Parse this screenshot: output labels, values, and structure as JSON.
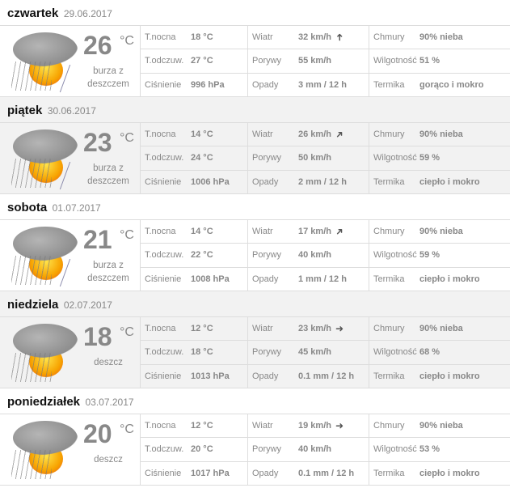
{
  "labels": {
    "night": "T.nocna",
    "feels": "T.odczuw.",
    "pressure": "Ciśnienie",
    "wind": "Wiatr",
    "gusts": "Porywy",
    "rain": "Opady",
    "clouds": "Chmury",
    "humidity": "Wilgotność",
    "thermal": "Termika",
    "unit": "°C"
  },
  "days": [
    {
      "name": "czwartek",
      "date": "29.06.2017",
      "temp": "26",
      "desc": "burza z deszczem",
      "icon": "thunderstorm-icon",
      "night": "18 °C",
      "feels": "27 °C",
      "pressure": "996 hPa",
      "wind": "32 km/h",
      "wind_dir": "north",
      "gusts": "55 km/h",
      "rain": "3 mm / 12 h",
      "clouds": "90% nieba",
      "humidity": "51 %",
      "thermal": "gorąco i mokro"
    },
    {
      "name": "piątek",
      "date": "30.06.2017",
      "temp": "23",
      "desc": "burza z deszczem",
      "icon": "thunderstorm-icon",
      "night": "14 °C",
      "feels": "24 °C",
      "pressure": "1006 hPa",
      "wind": "26 km/h",
      "wind_dir": "northeast",
      "gusts": "50 km/h",
      "rain": "2 mm / 12 h",
      "clouds": "90% nieba",
      "humidity": "59 %",
      "thermal": "ciepło i mokro"
    },
    {
      "name": "sobota",
      "date": "01.07.2017",
      "temp": "21",
      "desc": "burza z deszczem",
      "icon": "thunderstorm-icon",
      "night": "14 °C",
      "feels": "22 °C",
      "pressure": "1008 hPa",
      "wind": "17 km/h",
      "wind_dir": "northeast",
      "gusts": "40 km/h",
      "rain": "1 mm / 12 h",
      "clouds": "90% nieba",
      "humidity": "59 %",
      "thermal": "ciepło i mokro"
    },
    {
      "name": "niedziela",
      "date": "02.07.2017",
      "temp": "18",
      "desc": "deszcz",
      "icon": "rain-icon",
      "night": "12 °C",
      "feels": "18 °C",
      "pressure": "1013 hPa",
      "wind": "23 km/h",
      "wind_dir": "east",
      "gusts": "45 km/h",
      "rain": "0.1 mm / 12 h",
      "clouds": "90% nieba",
      "humidity": "68 %",
      "thermal": "ciepło i mokro"
    },
    {
      "name": "poniedziałek",
      "date": "03.07.2017",
      "temp": "20",
      "desc": "deszcz",
      "icon": "rain-icon",
      "night": "12 °C",
      "feels": "20 °C",
      "pressure": "1017 hPa",
      "wind": "19 km/h",
      "wind_dir": "east",
      "gusts": "40 km/h",
      "rain": "0.1 mm / 12 h",
      "clouds": "90% nieba",
      "humidity": "53 %",
      "thermal": "ciepło i mokro"
    }
  ]
}
